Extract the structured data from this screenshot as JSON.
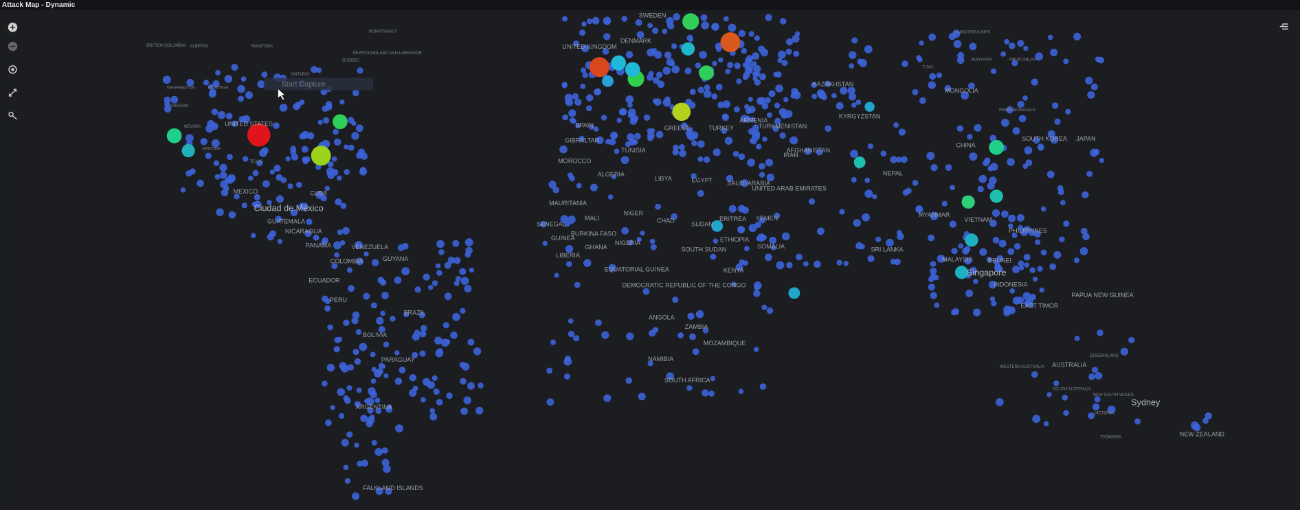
{
  "header": {
    "title": "Attack Map - Dynamic"
  },
  "tooltip": "Start Capture",
  "map": {
    "labels": [
      "BRITISH COLUMBIA",
      "ALBERTA",
      "MANITOBA",
      "NUNATSIAVUT",
      "NEWFOUNDLAND AND LABRADOR",
      "ONTARIO",
      "QUEBEC",
      "WASHINGTON",
      "MONTANA",
      "OREGON",
      "NEVADA",
      "UNITED STATES",
      "ARIZONA",
      "TEXAS",
      "MEXICO",
      "Ciudad de México",
      "CUBA",
      "GUATEMALA",
      "NICARAGUA",
      "PANAMA",
      "VENEZUELA",
      "COLOMBIA",
      "GUYANA",
      "ECUADOR",
      "PERU",
      "BRAZIL",
      "BOLIVIA",
      "PARAGUAY",
      "ARGENTINA",
      "FALKLAND ISLANDS",
      "UNITED KINGDOM",
      "DENMARK",
      "SWEDEN",
      "SPAIN",
      "GIBRALTAR",
      "MOROCCO",
      "TUNISIA",
      "ALGERIA",
      "LIBYA",
      "EGYPT",
      "GREECE",
      "TURKEY",
      "ARMENIA",
      "MAURITANIA",
      "MALI",
      "NIGER",
      "CHAD",
      "SUDAN",
      "ERITREA",
      "ETHIOPIA",
      "SOMALIA",
      "SENEGAL",
      "GUINEA",
      "BURKINA FASO",
      "GHANA",
      "NIGERIA",
      "LIBERIA",
      "SOUTH SUDAN",
      "EQUATORIAL GUINEA",
      "DEMOCRATIC REPUBLIC OF THE CONGO",
      "KENYA",
      "ANGOLA",
      "ZAMBIA",
      "MOZAMBIQUE",
      "NAMIBIA",
      "SOUTH AFRICA",
      "SAUDI ARABIA",
      "YEMEN",
      "UNITED ARAB EMIRATES",
      "IRAN",
      "TURKMENISTAN",
      "AFGHANISTAN",
      "KAZAKHSTAN",
      "KYRGYZSTAN",
      "MONGOLIA",
      "CHINA",
      "NEPAL",
      "MYANMAR",
      "VIETNAM",
      "PHILIPPINES",
      "MALAYSIA",
      "BRUNEI",
      "Singapore",
      "INDONESIA",
      "EAST TIMOR",
      "PAPUA NEW GUINEA",
      "AUSTRALIA",
      "Sydney",
      "NEW ZEALAND",
      "SOUTH KOREA",
      "JAPAN",
      "KAMCHATKA KRAI",
      "SRI LANKA",
      "TUVA",
      "AMUR OBLAST",
      "BURYATIA",
      "WESTERN AUSTRALIA",
      "QUEENSLAND",
      "SOUTH AUSTRALIA",
      "NEW SOUTH WALES",
      "VICTORIA",
      "TASMANIA",
      "INNER MONGOLIA"
    ]
  }
}
